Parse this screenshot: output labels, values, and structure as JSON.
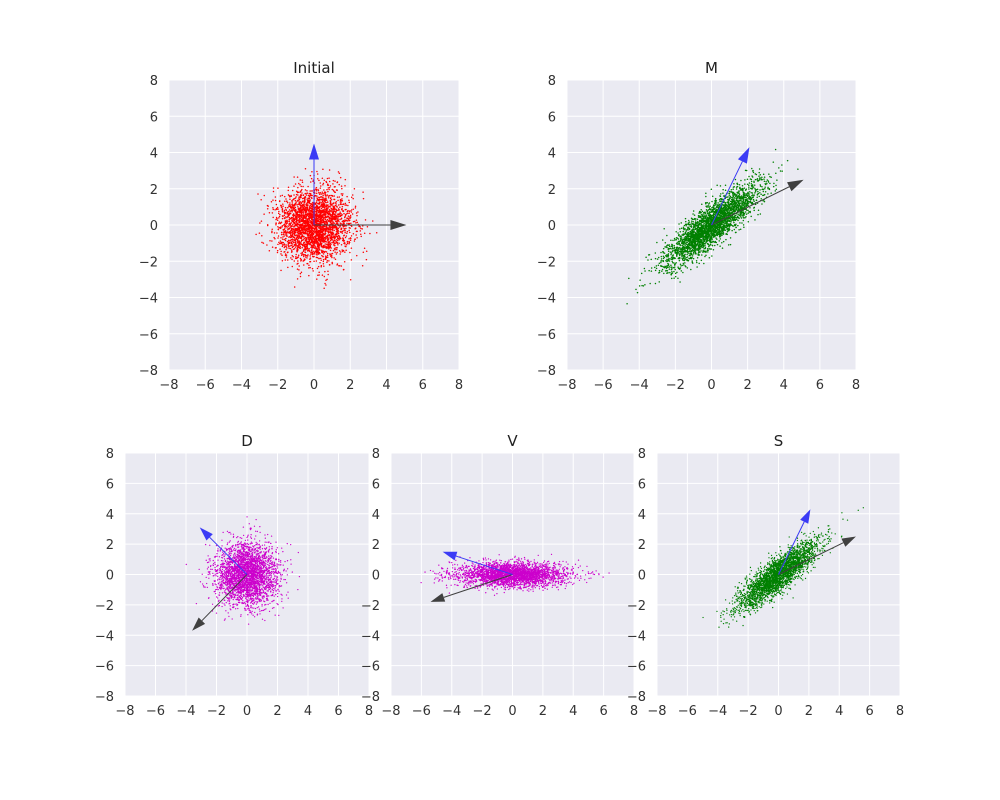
{
  "figure": {
    "background": "#ffffff",
    "axes_background": "#EAEAF2",
    "grid_color": "#ffffff",
    "grid": true
  },
  "chart_data": [
    {
      "id": "initial",
      "type": "scatter",
      "title": "Initial",
      "xlabel": "",
      "ylabel": "",
      "xlim": [
        -8,
        8
      ],
      "ylim": [
        -8,
        8
      ],
      "xticks": [
        -8,
        -6,
        -4,
        -2,
        0,
        2,
        4,
        6,
        8
      ],
      "yticks": [
        -8,
        -6,
        -4,
        -2,
        0,
        2,
        4,
        6,
        8
      ],
      "xtick_labels": [
        "−8",
        "−6",
        "−4",
        "−2",
        "0",
        "2",
        "4",
        "6",
        "8"
      ],
      "ytick_labels": [
        "−8",
        "−6",
        "−4",
        "−2",
        "0",
        "2",
        "4",
        "6",
        "8"
      ],
      "point_color": "#ff0000",
      "n_points": 3000,
      "cloud": {
        "mean": [
          0,
          0
        ],
        "std_major": 1.0,
        "std_minor": 1.0,
        "angle_deg": 0
      },
      "vectors": [
        {
          "name": "basis-1",
          "from": [
            0,
            0
          ],
          "to": [
            5.1,
            0.0
          ],
          "color": "#404040"
        },
        {
          "name": "basis-2",
          "from": [
            0,
            0
          ],
          "to": [
            0.0,
            4.5
          ],
          "color": "#3b3bf5"
        }
      ]
    },
    {
      "id": "m",
      "type": "scatter",
      "title": "M",
      "xlabel": "",
      "ylabel": "",
      "xlim": [
        -8,
        8
      ],
      "ylim": [
        -8,
        8
      ],
      "xticks": [
        -8,
        -6,
        -4,
        -2,
        0,
        2,
        4,
        6,
        8
      ],
      "yticks": [
        -8,
        -6,
        -4,
        -2,
        0,
        2,
        4,
        6,
        8
      ],
      "xtick_labels": [
        "−8",
        "−6",
        "−4",
        "−2",
        "0",
        "2",
        "4",
        "6",
        "8"
      ],
      "ytick_labels": [
        "−8",
        "−6",
        "−4",
        "−2",
        "0",
        "2",
        "4",
        "6",
        "8"
      ],
      "point_color": "#008000",
      "n_points": 3000,
      "cloud": {
        "mean": [
          0,
          0
        ],
        "std_major": 1.65,
        "std_minor": 0.45,
        "angle_deg": 40
      },
      "vectors": [
        {
          "name": "basis-1",
          "from": [
            0,
            0
          ],
          "to": [
            5.1,
            2.5
          ],
          "color": "#404040"
        },
        {
          "name": "basis-2",
          "from": [
            0,
            0
          ],
          "to": [
            2.1,
            4.3
          ],
          "color": "#3b3bf5"
        }
      ]
    },
    {
      "id": "d",
      "type": "scatter",
      "title": "D",
      "xlabel": "",
      "ylabel": "",
      "xlim": [
        -8,
        8
      ],
      "ylim": [
        -8,
        8
      ],
      "xticks": [
        -8,
        -6,
        -4,
        -2,
        0,
        2,
        4,
        6,
        8
      ],
      "yticks": [
        -8,
        -6,
        -4,
        -2,
        0,
        2,
        4,
        6,
        8
      ],
      "xtick_labels": [
        "−8",
        "−6",
        "−4",
        "−2",
        "0",
        "2",
        "4",
        "6",
        "8"
      ],
      "ytick_labels": [
        "−8",
        "−6",
        "−4",
        "−2",
        "0",
        "2",
        "4",
        "6",
        "8"
      ],
      "point_color": "#cc00cc",
      "n_points": 3000,
      "cloud": {
        "mean": [
          0,
          0
        ],
        "std_major": 1.0,
        "std_minor": 1.0,
        "angle_deg": 0
      },
      "vectors": [
        {
          "name": "basis-1",
          "from": [
            0,
            0
          ],
          "to": [
            -3.6,
            -3.7
          ],
          "color": "#404040"
        },
        {
          "name": "basis-2",
          "from": [
            0,
            0
          ],
          "to": [
            -3.1,
            3.1
          ],
          "color": "#3b3bf5"
        }
      ]
    },
    {
      "id": "v",
      "type": "scatter",
      "title": "V",
      "xlabel": "",
      "ylabel": "",
      "xlim": [
        -8,
        8
      ],
      "ylim": [
        -8,
        8
      ],
      "xticks": [
        -8,
        -6,
        -4,
        -2,
        0,
        2,
        4,
        6,
        8
      ],
      "yticks": [
        -8,
        -6,
        -4,
        -2,
        0,
        2,
        4,
        6,
        8
      ],
      "xtick_labels": [
        "−8",
        "−6",
        "−4",
        "−2",
        "0",
        "2",
        "4",
        "6",
        "8"
      ],
      "ytick_labels": [
        "−8",
        "−6",
        "−4",
        "−2",
        "0",
        "2",
        "4",
        "6",
        "8"
      ],
      "point_color": "#cc00cc",
      "n_points": 3000,
      "cloud": {
        "mean": [
          0,
          0
        ],
        "std_major": 1.8,
        "std_minor": 0.4,
        "angle_deg": 0
      },
      "vectors": [
        {
          "name": "basis-1",
          "from": [
            0,
            0
          ],
          "to": [
            -5.4,
            -1.8
          ],
          "color": "#404040"
        },
        {
          "name": "basis-2",
          "from": [
            0,
            0
          ],
          "to": [
            -4.6,
            1.5
          ],
          "color": "#3b3bf5"
        }
      ]
    },
    {
      "id": "s",
      "type": "scatter",
      "title": "S",
      "xlabel": "",
      "ylabel": "",
      "xlim": [
        -8,
        8
      ],
      "ylim": [
        -8,
        8
      ],
      "xticks": [
        -8,
        -6,
        -4,
        -2,
        0,
        2,
        4,
        6,
        8
      ],
      "yticks": [
        -8,
        -6,
        -4,
        -2,
        0,
        2,
        4,
        6,
        8
      ],
      "xtick_labels": [
        "−8",
        "−6",
        "−4",
        "−2",
        "0",
        "2",
        "4",
        "6",
        "8"
      ],
      "ytick_labels": [
        "−8",
        "−6",
        "−4",
        "−2",
        "0",
        "2",
        "4",
        "6",
        "8"
      ],
      "point_color": "#008000",
      "n_points": 3000,
      "cloud": {
        "mean": [
          0,
          0
        ],
        "std_major": 1.65,
        "std_minor": 0.45,
        "angle_deg": 40
      },
      "vectors": [
        {
          "name": "basis-1",
          "from": [
            0,
            0
          ],
          "to": [
            5.1,
            2.5
          ],
          "color": "#404040"
        },
        {
          "name": "basis-2",
          "from": [
            0,
            0
          ],
          "to": [
            2.1,
            4.3
          ],
          "color": "#3b3bf5"
        }
      ]
    }
  ]
}
